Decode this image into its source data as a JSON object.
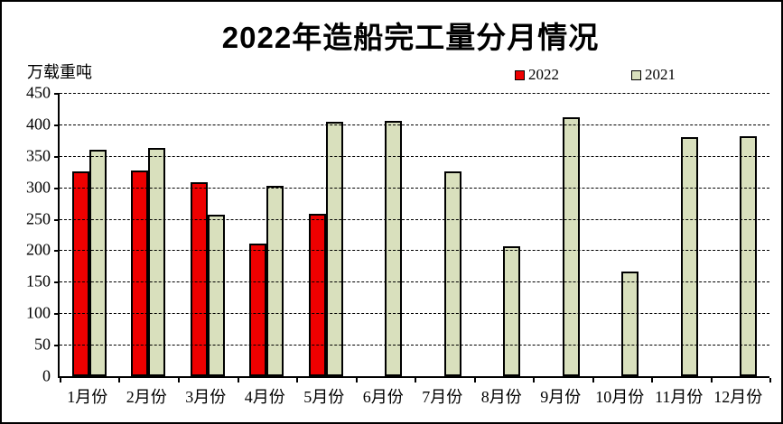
{
  "title": "2022年造船完工量分月情况",
  "y_axis": {
    "unit_label": "万载重吨",
    "tick_labels": [
      "450",
      "400",
      "350",
      "300",
      "250",
      "200",
      "150",
      "100",
      "50",
      "0"
    ]
  },
  "legend": {
    "items": [
      {
        "label": "2022",
        "color": "#ee0000"
      },
      {
        "label": "2021",
        "color": "#d9e0bd"
      }
    ]
  },
  "chart_data": {
    "type": "bar",
    "title": "2022年造船完工量分月情况",
    "ylabel": "万载重吨",
    "categories": [
      "1月份",
      "2月份",
      "3月份",
      "4月份",
      "5月份",
      "6月份",
      "7月份",
      "8月份",
      "9月份",
      "10月份",
      "11月份",
      "12月份"
    ],
    "series": [
      {
        "name": "2022",
        "color": "#ee0000",
        "values": [
          325,
          327,
          308,
          211,
          258,
          null,
          null,
          null,
          null,
          null,
          null,
          null
        ]
      },
      {
        "name": "2021",
        "color": "#d9e0bd",
        "values": [
          360,
          362,
          256,
          302,
          404,
          406,
          325,
          207,
          412,
          166,
          380,
          381
        ]
      }
    ],
    "ylim": [
      0,
      450
    ],
    "ytick_step": 50,
    "grid": "horizontal-dashed",
    "legend_position": "top-right"
  }
}
